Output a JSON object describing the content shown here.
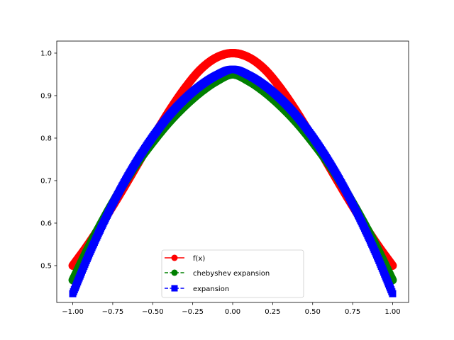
{
  "chart_data": {
    "type": "line",
    "title": "",
    "xlabel": "",
    "ylabel": "",
    "xlim": [
      -1.1,
      1.1
    ],
    "ylim": [
      0.4133,
      1.0283
    ],
    "x_ticks": [
      -1.0,
      -0.75,
      -0.5,
      -0.25,
      0.0,
      0.25,
      0.5,
      0.75,
      1.0
    ],
    "x_tick_labels": [
      "−1.00",
      "−0.75",
      "−0.50",
      "−0.25",
      "0.00",
      "0.25",
      "0.50",
      "0.75",
      "1.00"
    ],
    "y_ticks": [
      0.5,
      0.6,
      0.7,
      0.8,
      0.9,
      1.0
    ],
    "y_tick_labels": [
      "0.5",
      "0.6",
      "0.7",
      "0.8",
      "0.9",
      "1.0"
    ],
    "grid": false,
    "legend_position": "lower-center",
    "x": [
      -1.0,
      -0.9,
      -0.8,
      -0.7,
      -0.6,
      -0.5,
      -0.4,
      -0.3,
      -0.2,
      -0.1,
      0.0,
      0.1,
      0.2,
      0.3,
      0.4,
      0.5,
      0.6,
      0.7,
      0.8,
      0.9,
      1.0
    ],
    "series": [
      {
        "name": "f(x)",
        "color": "#ff0000",
        "line_style": "solid",
        "marker": "circle",
        "values": [
          0.5,
          0.552,
          0.61,
          0.671,
          0.735,
          0.8,
          0.862,
          0.917,
          0.962,
          0.99,
          1.0,
          0.99,
          0.962,
          0.917,
          0.862,
          0.8,
          0.735,
          0.671,
          0.61,
          0.552,
          0.5
        ]
      },
      {
        "name": "chebyshev expansion",
        "color": "#008000",
        "line_style": "dashed",
        "marker": "circle",
        "values": [
          0.466,
          0.544,
          0.615,
          0.68,
          0.739,
          0.79,
          0.836,
          0.875,
          0.908,
          0.934,
          0.95,
          0.934,
          0.908,
          0.875,
          0.836,
          0.79,
          0.739,
          0.68,
          0.615,
          0.544,
          0.466
        ]
      },
      {
        "name": "expansion",
        "color": "#0000ff",
        "line_style": "dashed",
        "marker": "square",
        "values": [
          0.434,
          0.525,
          0.607,
          0.681,
          0.746,
          0.803,
          0.852,
          0.892,
          0.924,
          0.948,
          0.962,
          0.948,
          0.924,
          0.892,
          0.852,
          0.803,
          0.746,
          0.681,
          0.607,
          0.525,
          0.434
        ]
      }
    ]
  }
}
